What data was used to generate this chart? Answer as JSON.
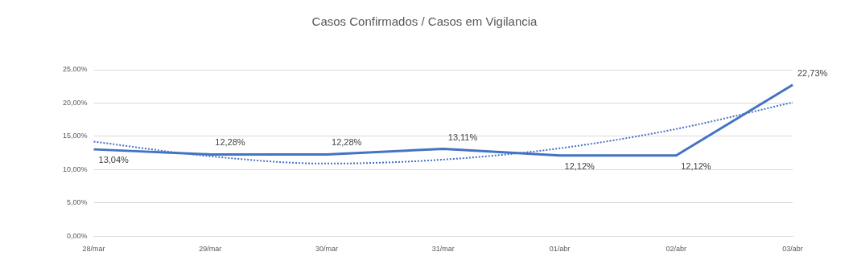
{
  "chart_data": {
    "type": "line",
    "title": "Casos Confirmados / Casos em Vigilancia",
    "categories": [
      "28/mar",
      "29/mar",
      "30/mar",
      "31/mar",
      "01/abr",
      "02/abr",
      "03/abr"
    ],
    "series": [
      {
        "color": "#4472c4",
        "values": [
          13.04,
          12.28,
          12.28,
          13.11,
          12.12,
          12.12,
          22.73
        ],
        "value_labels": [
          "13,04%",
          "12,28%",
          "12,28%",
          "13,11%",
          "12,12%",
          "12,12%",
          "22,73%"
        ],
        "line_style": "solid"
      },
      {
        "color": "#4472c4",
        "values": [
          14.2,
          12.0,
          10.9,
          11.5,
          13.2,
          16.1,
          20.1
        ],
        "line_style": "dotted"
      }
    ],
    "ylim": [
      0,
      25
    ],
    "yticks": [
      {
        "value": 0,
        "label": "0,00%"
      },
      {
        "value": 5,
        "label": "5,00%"
      },
      {
        "value": 10,
        "label": "10,00%"
      },
      {
        "value": 15,
        "label": "15,00%"
      },
      {
        "value": 20,
        "label": "20,00%"
      },
      {
        "value": 25,
        "label": "25,00%"
      }
    ],
    "grid": "y",
    "legend": false,
    "marker": "none"
  }
}
